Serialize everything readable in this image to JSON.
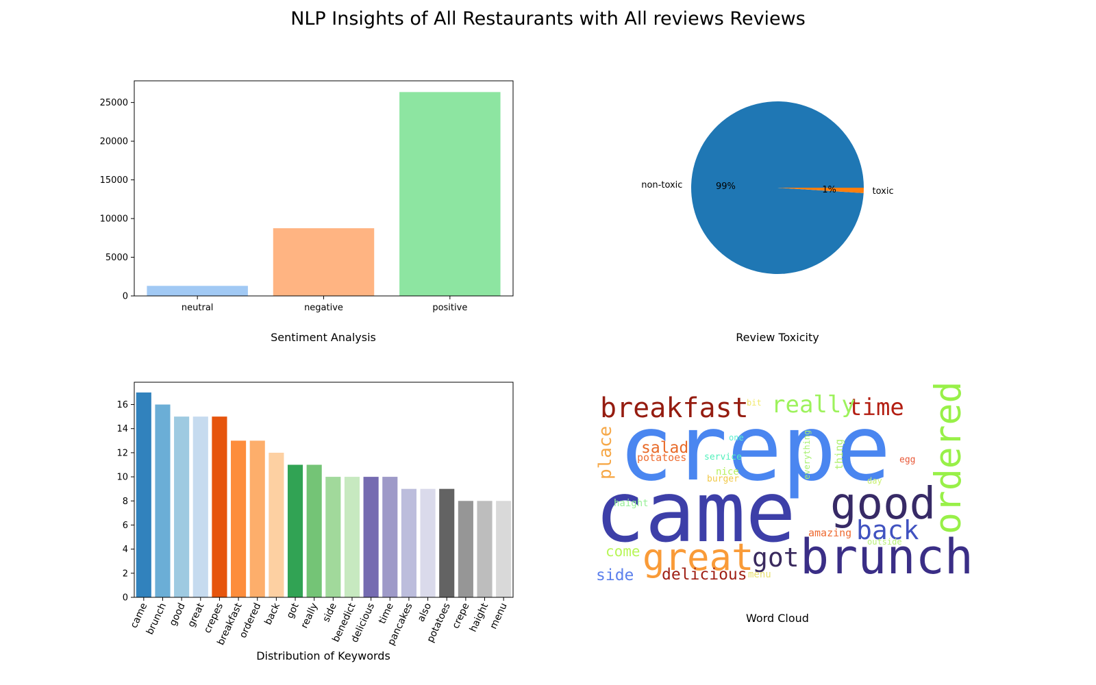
{
  "figure": {
    "title": "NLP Insights of All Restaurants with All reviews Reviews"
  },
  "chart_data": [
    {
      "type": "bar",
      "title": "",
      "xlabel": "Sentiment Analysis",
      "ylabel": "",
      "categories": [
        "neutral",
        "negative",
        "positive"
      ],
      "values": [
        1300,
        8750,
        26350
      ],
      "colors": [
        "#a1c9f4",
        "#ffb482",
        "#8de5a1"
      ],
      "ylim": [
        0,
        27800
      ],
      "yticks": [
        0,
        5000,
        10000,
        15000,
        20000,
        25000
      ],
      "grid": false
    },
    {
      "type": "pie",
      "title": "",
      "xlabel": "Review Toxicity",
      "labels": [
        "non-toxic",
        "toxic"
      ],
      "values": [
        99,
        1
      ],
      "pct_labels": [
        "99%",
        "1%"
      ],
      "colors": [
        "#1f77b4",
        "#ff7f0e"
      ]
    },
    {
      "type": "bar",
      "title": "",
      "xlabel": "Distribution of Keywords",
      "ylabel": "",
      "categories": [
        "came",
        "brunch",
        "good",
        "great",
        "crepes",
        "breakfast",
        "ordered",
        "back",
        "got",
        "really",
        "side",
        "benedict",
        "delicious",
        "time",
        "pancakes",
        "also",
        "potatoes",
        "crepe",
        "haight",
        "menu"
      ],
      "values": [
        17,
        16,
        15,
        15,
        15,
        13,
        13,
        12,
        11,
        11,
        10,
        10,
        10,
        10,
        9,
        9,
        9,
        8,
        8,
        8
      ],
      "colors": [
        "#3182bd",
        "#6baed6",
        "#9ecae1",
        "#c6dbef",
        "#e6550d",
        "#fd8d3c",
        "#fdae6b",
        "#fdd0a2",
        "#31a354",
        "#74c476",
        "#a1d99b",
        "#c7e9c0",
        "#756bb1",
        "#9e9ac8",
        "#bcbddc",
        "#dadaeb",
        "#636363",
        "#969696",
        "#bdbdbd",
        "#d9d9d9"
      ],
      "ylim": [
        0,
        17.85
      ],
      "yticks": [
        0,
        2,
        4,
        6,
        8,
        10,
        12,
        14,
        16
      ],
      "grid": false
    }
  ],
  "wordcloud": {
    "label": "Word Cloud",
    "words": [
      {
        "text": "crepe",
        "color": "#4a86f0"
      },
      {
        "text": "came",
        "color": "#3d3fa8"
      },
      {
        "text": "brunch",
        "color": "#3a2e86"
      },
      {
        "text": "good",
        "color": "#372a66"
      },
      {
        "text": "great",
        "color": "#f99b38"
      },
      {
        "text": "ordered",
        "color": "#98f048"
      },
      {
        "text": "breakfast",
        "color": "#951c10"
      },
      {
        "text": "back",
        "color": "#4052c0"
      },
      {
        "text": "time",
        "color": "#b31e12"
      },
      {
        "text": "really",
        "color": "#9df25c"
      },
      {
        "text": "got",
        "color": "#3a2a5e"
      },
      {
        "text": "delicious",
        "color": "#9f1f14"
      },
      {
        "text": "place",
        "color": "#f6a848"
      },
      {
        "text": "salad",
        "color": "#e86a28"
      },
      {
        "text": "side",
        "color": "#5c80ec"
      },
      {
        "text": "come",
        "color": "#b8f658"
      },
      {
        "text": "potatoes",
        "color": "#ee6d32"
      },
      {
        "text": "service",
        "color": "#52f0bc"
      },
      {
        "text": "nice",
        "color": "#b8f060"
      },
      {
        "text": "burger",
        "color": "#f0c848"
      },
      {
        "text": "one",
        "color": "#5cf0d0"
      },
      {
        "text": "bit",
        "color": "#f0e868"
      },
      {
        "text": "everything",
        "color": "#a8f070"
      },
      {
        "text": "thing",
        "color": "#b0f070"
      },
      {
        "text": "egg",
        "color": "#e85838"
      },
      {
        "text": "day",
        "color": "#c8f070"
      },
      {
        "text": "haight",
        "color": "#98f098"
      },
      {
        "text": "amazing",
        "color": "#ee6a30"
      },
      {
        "text": "outside",
        "color": "#b8f078"
      },
      {
        "text": "menu",
        "color": "#e8e070"
      }
    ]
  }
}
